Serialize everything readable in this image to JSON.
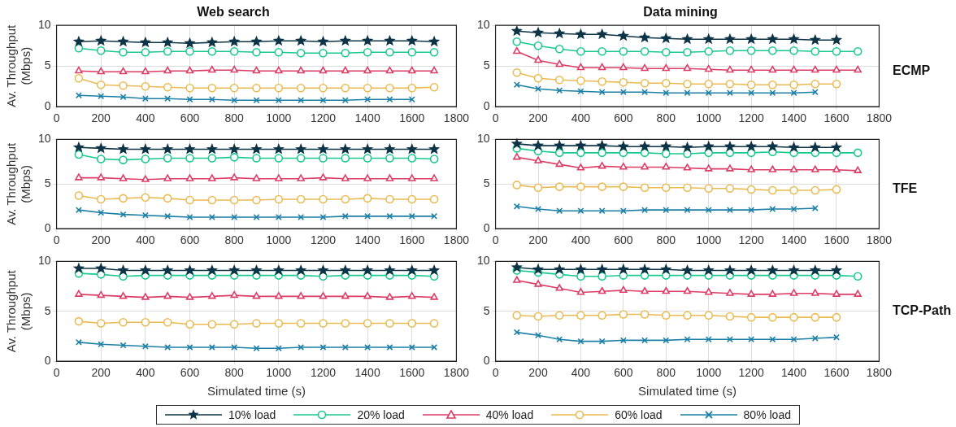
{
  "chart_data": [
    {
      "type": "line",
      "title": "Web search",
      "ylabel": "Av. Throughput (Mbps)",
      "x": [
        100,
        200,
        300,
        400,
        500,
        600,
        700,
        800,
        900,
        1000,
        1100,
        1200,
        1300,
        1400,
        1500,
        1600,
        1700
      ],
      "xlim": [
        0,
        1800
      ],
      "xticks": [
        0,
        200,
        400,
        600,
        800,
        1000,
        1200,
        1400,
        1600,
        1800
      ],
      "ylim": [
        0,
        10
      ],
      "yticks": [
        0,
        5,
        10
      ],
      "grid": true,
      "series": [
        {
          "color": "#0d3446",
          "marker": "star",
          "values": [
            8.0,
            8.1,
            8.0,
            7.9,
            7.9,
            7.8,
            7.9,
            8.0,
            8.0,
            8.1,
            8.1,
            8.0,
            8.1,
            8.1,
            8.1,
            8.1,
            8.0
          ]
        },
        {
          "color": "#19c98e",
          "marker": "circle",
          "values": [
            7.2,
            6.9,
            6.7,
            6.7,
            6.8,
            6.8,
            6.8,
            6.8,
            6.7,
            6.7,
            6.6,
            6.6,
            6.6,
            6.7,
            6.7,
            6.7,
            6.7
          ]
        },
        {
          "color": "#dc3c66",
          "marker": "triangle",
          "values": [
            4.4,
            4.3,
            4.3,
            4.3,
            4.4,
            4.4,
            4.5,
            4.5,
            4.4,
            4.4,
            4.4,
            4.4,
            4.4,
            4.4,
            4.4,
            4.4,
            4.4
          ]
        },
        {
          "color": "#eabb52",
          "marker": "circle",
          "values": [
            3.5,
            2.7,
            2.6,
            2.5,
            2.4,
            2.3,
            2.3,
            2.3,
            2.3,
            2.3,
            2.3,
            2.3,
            2.3,
            2.3,
            2.3,
            2.3,
            2.4
          ]
        },
        {
          "color": "#1b7fa6",
          "marker": "cross",
          "values": [
            1.4,
            1.3,
            1.2,
            1.0,
            1.0,
            0.9,
            0.9,
            0.8,
            0.8,
            0.8,
            0.8,
            0.8,
            0.8,
            0.9,
            0.9,
            0.9,
            null
          ]
        }
      ]
    },
    {
      "type": "line",
      "title": "Data mining",
      "y2label": "ECMP",
      "x": [
        100,
        200,
        300,
        400,
        500,
        600,
        700,
        800,
        900,
        1000,
        1100,
        1200,
        1300,
        1400,
        1500,
        1600,
        1700
      ],
      "xlim": [
        0,
        1800
      ],
      "xticks": [
        0,
        200,
        400,
        600,
        800,
        1000,
        1200,
        1400,
        1600,
        1800
      ],
      "ylim": [
        0,
        10
      ],
      "yticks": [
        0,
        5,
        10
      ],
      "grid": true,
      "series": [
        {
          "color": "#0d3446",
          "marker": "star",
          "values": [
            9.3,
            9.1,
            9.0,
            8.9,
            8.9,
            8.7,
            8.5,
            8.4,
            8.3,
            8.3,
            8.3,
            8.3,
            8.3,
            8.3,
            8.2,
            8.2,
            null
          ]
        },
        {
          "color": "#19c98e",
          "marker": "circle",
          "values": [
            8.0,
            7.5,
            7.1,
            6.8,
            6.8,
            6.8,
            6.8,
            6.7,
            6.7,
            6.8,
            6.9,
            6.9,
            6.9,
            6.9,
            6.8,
            6.8,
            6.8
          ]
        },
        {
          "color": "#dc3c66",
          "marker": "triangle",
          "values": [
            6.8,
            5.7,
            5.2,
            4.8,
            4.8,
            4.8,
            4.7,
            4.7,
            4.7,
            4.6,
            4.5,
            4.5,
            4.5,
            4.5,
            4.5,
            4.5,
            4.5
          ]
        },
        {
          "color": "#eabb52",
          "marker": "circle",
          "values": [
            4.2,
            3.5,
            3.3,
            3.2,
            3.1,
            3.0,
            2.9,
            2.9,
            2.8,
            2.8,
            2.8,
            2.7,
            2.7,
            2.7,
            2.8,
            2.8,
            null
          ]
        },
        {
          "color": "#1b7fa6",
          "marker": "cross",
          "values": [
            2.7,
            2.2,
            2.0,
            1.9,
            1.8,
            1.8,
            1.8,
            1.7,
            1.7,
            1.7,
            1.7,
            1.7,
            1.7,
            1.7,
            1.8,
            null,
            null
          ]
        }
      ]
    },
    {
      "type": "line",
      "ylabel": "Av. Throughput (Mbps)",
      "x": [
        100,
        200,
        300,
        400,
        500,
        600,
        700,
        800,
        900,
        1000,
        1100,
        1200,
        1300,
        1400,
        1500,
        1600,
        1700
      ],
      "xlim": [
        0,
        1800
      ],
      "xticks": [
        0,
        200,
        400,
        600,
        800,
        1000,
        1200,
        1400,
        1600,
        1800
      ],
      "ylim": [
        0,
        10
      ],
      "yticks": [
        0,
        5,
        10
      ],
      "grid": true,
      "series": [
        {
          "color": "#0d3446",
          "marker": "star",
          "values": [
            9.1,
            9.0,
            8.9,
            8.9,
            8.9,
            8.9,
            8.9,
            8.9,
            8.9,
            8.9,
            8.9,
            8.9,
            8.9,
            8.9,
            8.9,
            8.9,
            8.9
          ]
        },
        {
          "color": "#19c98e",
          "marker": "circle",
          "values": [
            8.3,
            7.8,
            7.7,
            7.8,
            7.9,
            7.9,
            7.9,
            8.0,
            7.9,
            7.9,
            7.9,
            7.9,
            7.9,
            7.9,
            7.9,
            7.9,
            7.8
          ]
        },
        {
          "color": "#dc3c66",
          "marker": "triangle",
          "values": [
            5.7,
            5.7,
            5.6,
            5.5,
            5.6,
            5.6,
            5.6,
            5.7,
            5.6,
            5.6,
            5.6,
            5.7,
            5.6,
            5.6,
            5.6,
            5.6,
            5.6
          ]
        },
        {
          "color": "#eabb52",
          "marker": "circle",
          "values": [
            3.7,
            3.3,
            3.4,
            3.5,
            3.4,
            3.2,
            3.2,
            3.2,
            3.2,
            3.3,
            3.3,
            3.3,
            3.3,
            3.4,
            3.3,
            3.3,
            3.3
          ]
        },
        {
          "color": "#1b7fa6",
          "marker": "cross",
          "values": [
            2.1,
            1.8,
            1.6,
            1.5,
            1.4,
            1.3,
            1.3,
            1.3,
            1.3,
            1.3,
            1.3,
            1.3,
            1.4,
            1.4,
            1.4,
            1.4,
            1.4
          ]
        }
      ]
    },
    {
      "type": "line",
      "y2label": "TFE",
      "x": [
        100,
        200,
        300,
        400,
        500,
        600,
        700,
        800,
        900,
        1000,
        1100,
        1200,
        1300,
        1400,
        1500,
        1600,
        1700
      ],
      "xlim": [
        0,
        1800
      ],
      "xticks": [
        0,
        200,
        400,
        600,
        800,
        1000,
        1200,
        1400,
        1600,
        1800
      ],
      "ylim": [
        0,
        10
      ],
      "yticks": [
        0,
        5,
        10
      ],
      "grid": true,
      "series": [
        {
          "color": "#0d3446",
          "marker": "star",
          "values": [
            9.5,
            9.3,
            9.3,
            9.3,
            9.3,
            9.2,
            9.2,
            9.2,
            9.1,
            9.2,
            9.2,
            9.2,
            9.2,
            9.1,
            9.1,
            9.1,
            null
          ]
        },
        {
          "color": "#19c98e",
          "marker": "circle",
          "values": [
            9.0,
            8.7,
            8.5,
            8.5,
            8.5,
            8.5,
            8.5,
            8.4,
            8.4,
            8.5,
            8.5,
            8.5,
            8.6,
            8.5,
            8.5,
            8.5,
            8.5
          ]
        },
        {
          "color": "#dc3c66",
          "marker": "triangle",
          "values": [
            8.0,
            7.6,
            7.2,
            6.8,
            7.0,
            6.9,
            6.9,
            6.9,
            6.8,
            6.7,
            6.7,
            6.6,
            6.6,
            6.6,
            6.6,
            6.6,
            6.5
          ]
        },
        {
          "color": "#eabb52",
          "marker": "circle",
          "values": [
            4.9,
            4.6,
            4.7,
            4.7,
            4.7,
            4.7,
            4.6,
            4.6,
            4.6,
            4.5,
            4.5,
            4.4,
            4.3,
            4.3,
            4.3,
            4.4,
            null
          ]
        },
        {
          "color": "#1b7fa6",
          "marker": "cross",
          "values": [
            2.5,
            2.2,
            2.0,
            2.0,
            2.0,
            2.0,
            2.1,
            2.1,
            2.1,
            2.1,
            2.1,
            2.1,
            2.2,
            2.2,
            2.3,
            null,
            null
          ]
        }
      ]
    },
    {
      "type": "line",
      "xlabel": "Simulated time (s)",
      "ylabel": "Av. Throughput (Mbps)",
      "x": [
        100,
        200,
        300,
        400,
        500,
        600,
        700,
        800,
        900,
        1000,
        1100,
        1200,
        1300,
        1400,
        1500,
        1600,
        1700
      ],
      "xlim": [
        0,
        1800
      ],
      "xticks": [
        0,
        200,
        400,
        600,
        800,
        1000,
        1200,
        1400,
        1600,
        1800
      ],
      "ylim": [
        0,
        10
      ],
      "yticks": [
        0,
        5,
        10
      ],
      "grid": true,
      "series": [
        {
          "color": "#0d3446",
          "marker": "star",
          "values": [
            9.3,
            9.3,
            9.1,
            9.1,
            9.1,
            9.1,
            9.1,
            9.1,
            9.1,
            9.1,
            9.1,
            9.1,
            9.1,
            9.1,
            9.1,
            9.1,
            9.1
          ]
        },
        {
          "color": "#19c98e",
          "marker": "circle",
          "values": [
            8.8,
            8.7,
            8.5,
            8.6,
            8.6,
            8.6,
            8.6,
            8.6,
            8.6,
            8.6,
            8.6,
            8.5,
            8.6,
            8.6,
            8.6,
            8.6,
            8.5
          ]
        },
        {
          "color": "#dc3c66",
          "marker": "triangle",
          "values": [
            6.7,
            6.6,
            6.5,
            6.4,
            6.5,
            6.4,
            6.5,
            6.6,
            6.5,
            6.5,
            6.5,
            6.5,
            6.5,
            6.5,
            6.4,
            6.5,
            6.4
          ]
        },
        {
          "color": "#eabb52",
          "marker": "circle",
          "values": [
            4.0,
            3.8,
            3.9,
            3.9,
            3.9,
            3.7,
            3.7,
            3.7,
            3.8,
            3.8,
            3.8,
            3.8,
            3.8,
            3.8,
            3.8,
            3.8,
            3.8
          ]
        },
        {
          "color": "#1b7fa6",
          "marker": "cross",
          "values": [
            1.9,
            1.7,
            1.6,
            1.5,
            1.4,
            1.4,
            1.4,
            1.4,
            1.3,
            1.3,
            1.4,
            1.4,
            1.4,
            1.4,
            1.4,
            1.4,
            1.4
          ]
        }
      ]
    },
    {
      "type": "line",
      "xlabel": "Simulated time (s)",
      "y2label": "TCP-Path",
      "x": [
        100,
        200,
        300,
        400,
        500,
        600,
        700,
        800,
        900,
        1000,
        1100,
        1200,
        1300,
        1400,
        1500,
        1600,
        1700
      ],
      "xlim": [
        0,
        1800
      ],
      "xticks": [
        0,
        200,
        400,
        600,
        800,
        1000,
        1200,
        1400,
        1600,
        1800
      ],
      "ylim": [
        0,
        10
      ],
      "yticks": [
        0,
        5,
        10
      ],
      "grid": true,
      "legend": "bottom",
      "series": [
        {
          "name": "10% load",
          "color": "#0d3446",
          "marker": "star",
          "values": [
            9.4,
            9.2,
            9.2,
            9.2,
            9.2,
            9.2,
            9.2,
            9.2,
            9.1,
            9.1,
            9.1,
            9.1,
            9.1,
            9.1,
            9.1,
            9.1,
            null
          ]
        },
        {
          "name": "20% load",
          "color": "#19c98e",
          "marker": "circle",
          "values": [
            9.1,
            8.9,
            8.7,
            8.5,
            8.5,
            8.6,
            8.6,
            8.6,
            8.6,
            8.6,
            8.6,
            8.6,
            8.6,
            8.6,
            8.6,
            8.6,
            8.5
          ]
        },
        {
          "name": "40% load",
          "color": "#dc3c66",
          "marker": "triangle",
          "values": [
            8.1,
            7.7,
            7.3,
            6.9,
            7.0,
            7.1,
            7.0,
            7.0,
            7.0,
            6.9,
            6.8,
            6.7,
            6.7,
            6.8,
            6.8,
            6.7,
            6.7
          ]
        },
        {
          "name": "60% load",
          "color": "#eabb52",
          "marker": "circle",
          "values": [
            4.6,
            4.5,
            4.6,
            4.6,
            4.6,
            4.7,
            4.7,
            4.6,
            4.6,
            4.6,
            4.5,
            4.4,
            4.4,
            4.4,
            4.4,
            4.4,
            null
          ]
        },
        {
          "name": "80% load",
          "color": "#1b7fa6",
          "marker": "cross",
          "values": [
            2.9,
            2.6,
            2.2,
            2.0,
            2.0,
            2.1,
            2.1,
            2.1,
            2.2,
            2.2,
            2.2,
            2.2,
            2.2,
            2.2,
            2.3,
            2.4,
            null
          ]
        }
      ]
    }
  ]
}
